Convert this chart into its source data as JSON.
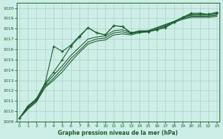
{
  "title": "Graphe pression niveau de la mer (hPa)",
  "bg_color": "#cceee6",
  "grid_color": "#b0ccc4",
  "line_color": "#1a5c2a",
  "ylim": [
    1009,
    1020.5
  ],
  "xlim": [
    -0.3,
    23.3
  ],
  "yticks": [
    1009,
    1010,
    1011,
    1012,
    1013,
    1014,
    1015,
    1016,
    1017,
    1018,
    1019,
    1020
  ],
  "xticks": [
    0,
    1,
    2,
    3,
    4,
    5,
    6,
    7,
    8,
    9,
    10,
    11,
    12,
    13,
    14,
    15,
    16,
    17,
    18,
    19,
    20,
    21,
    22,
    23
  ],
  "lines": [
    {
      "y": [
        1009.3,
        1010.5,
        1011.2,
        1012.7,
        1013.8,
        1015.0,
        1016.3,
        1017.2,
        1018.1,
        1017.6,
        1017.4,
        1018.3,
        1018.2,
        1017.6,
        1017.7,
        1017.7,
        1017.9,
        1018.2,
        1018.6,
        1019.1,
        1019.5,
        1019.5,
        1019.4,
        1019.6
      ],
      "marker": true
    },
    {
      "y": [
        1009.3,
        1010.5,
        1011.2,
        1012.7,
        1016.3,
        1015.8,
        1016.4,
        1017.3,
        1018.1,
        1017.6,
        1017.4,
        1018.3,
        1018.2,
        1017.6,
        1017.7,
        1017.7,
        1017.9,
        1018.1,
        1018.6,
        1019.1,
        1019.4,
        1019.4,
        1019.4,
        1019.5
      ],
      "marker": true
    },
    {
      "y": [
        1009.3,
        1010.4,
        1011.1,
        1012.6,
        1013.5,
        1014.4,
        1015.4,
        1016.2,
        1017.0,
        1017.2,
        1017.3,
        1017.8,
        1017.9,
        1017.6,
        1017.8,
        1017.8,
        1018.1,
        1018.4,
        1018.7,
        1019.1,
        1019.3,
        1019.3,
        1019.3,
        1019.4
      ],
      "marker": false
    },
    {
      "y": [
        1009.3,
        1010.3,
        1011.0,
        1012.4,
        1013.2,
        1014.1,
        1015.1,
        1015.9,
        1016.7,
        1017.0,
        1017.1,
        1017.6,
        1017.7,
        1017.5,
        1017.7,
        1017.8,
        1018.1,
        1018.4,
        1018.7,
        1019.0,
        1019.2,
        1019.2,
        1019.2,
        1019.3
      ],
      "marker": false
    },
    {
      "y": [
        1009.3,
        1010.2,
        1010.9,
        1012.3,
        1013.0,
        1013.8,
        1014.8,
        1015.7,
        1016.5,
        1016.8,
        1016.9,
        1017.4,
        1017.5,
        1017.4,
        1017.6,
        1017.7,
        1018.0,
        1018.3,
        1018.6,
        1018.9,
        1019.1,
        1019.1,
        1019.1,
        1019.2
      ],
      "marker": false
    }
  ]
}
